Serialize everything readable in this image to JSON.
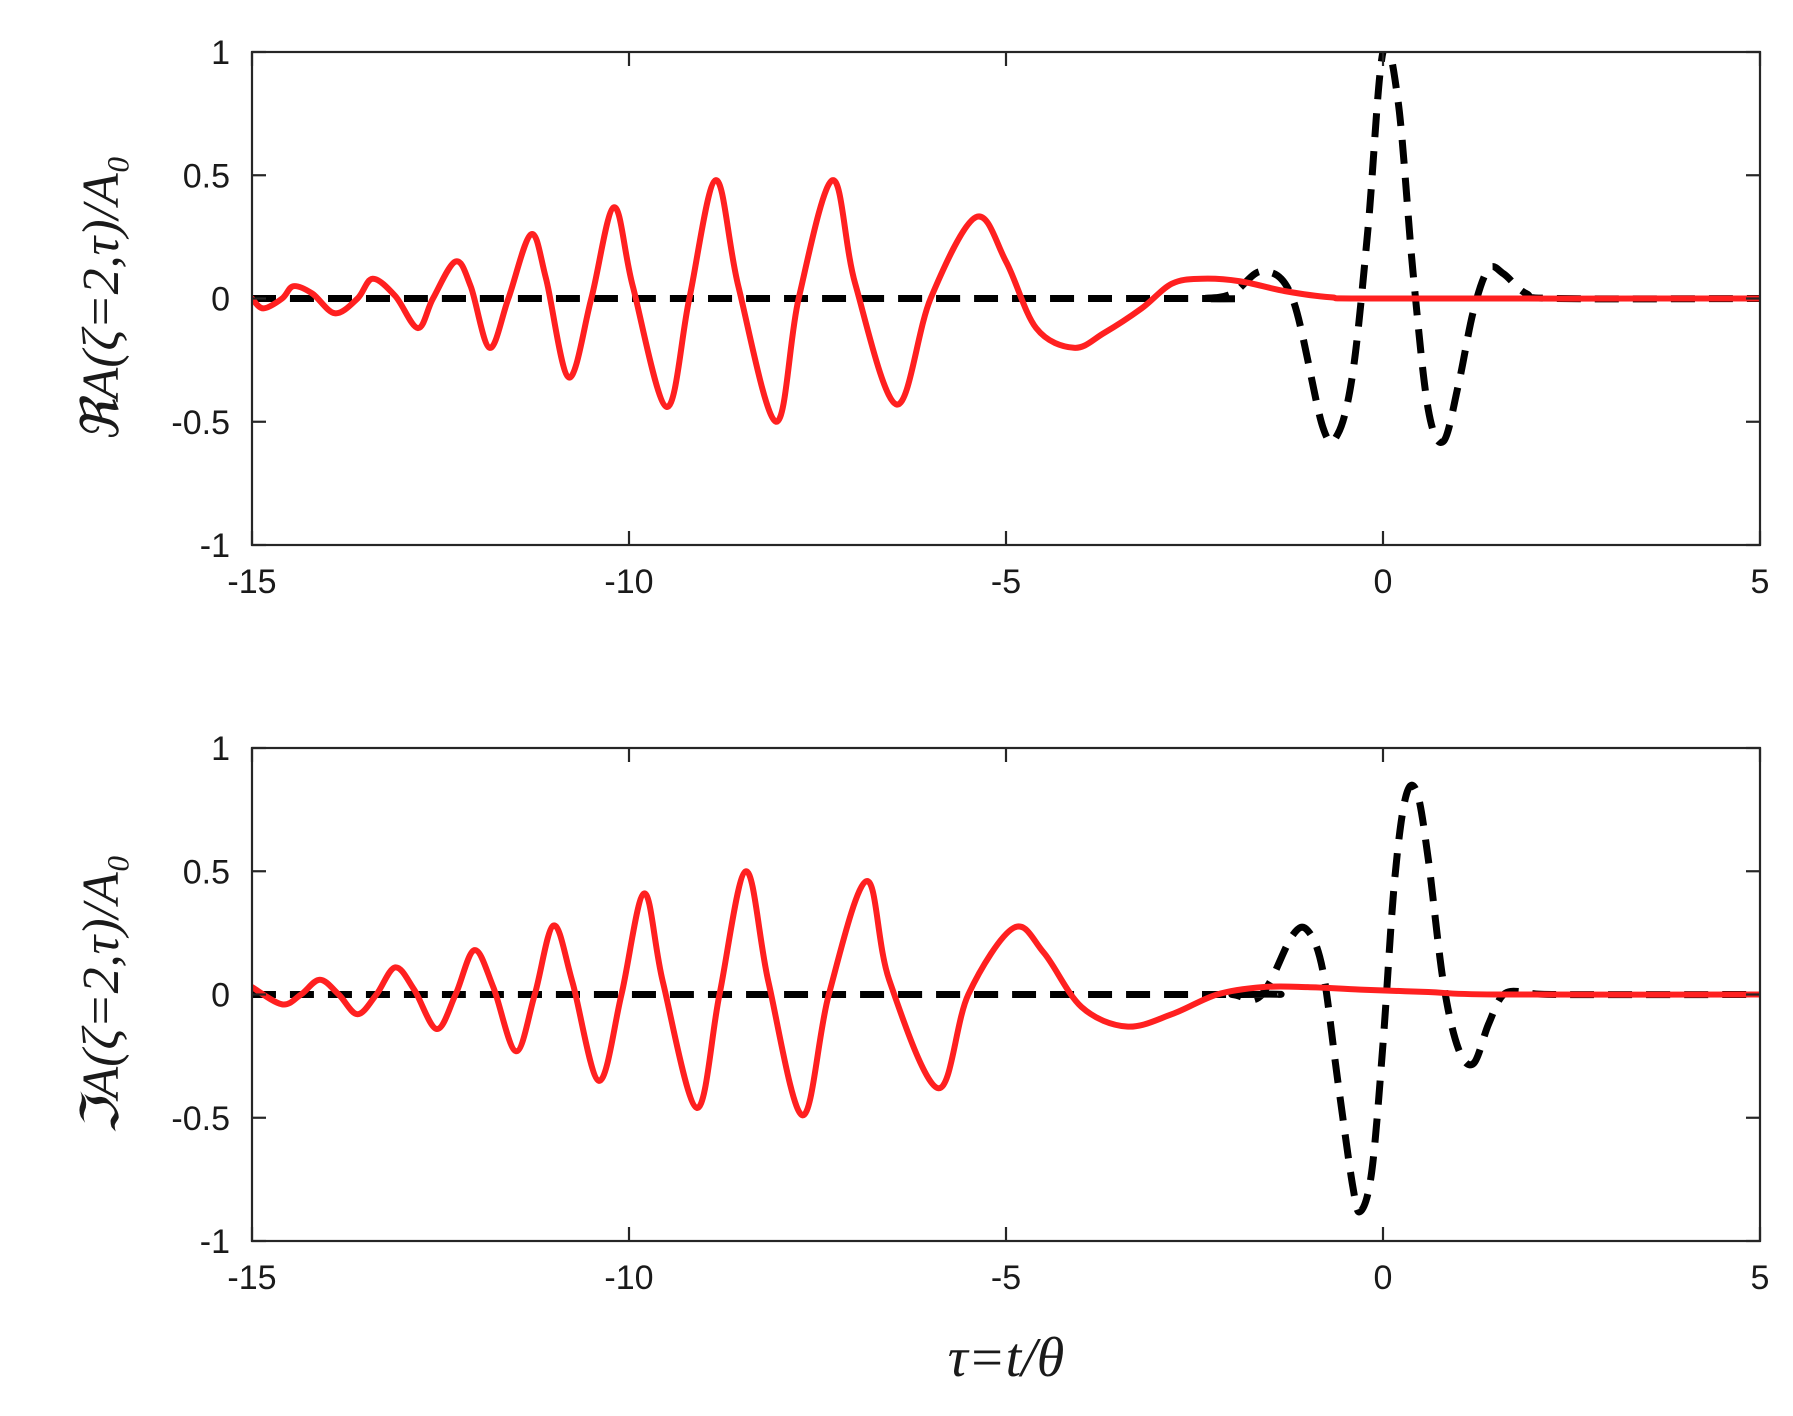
{
  "chart_data": [
    {
      "type": "line",
      "ylabel": "ℜA(ζ=2,τ)/A₀",
      "xlim": [
        -15,
        5
      ],
      "ylim": [
        -1,
        1
      ],
      "xticks": [
        -15,
        -10,
        -5,
        0,
        5
      ],
      "yticks": [
        -1,
        -0.5,
        0,
        0.5,
        1
      ],
      "xtick_labels": [
        "-15",
        "-10",
        "-5",
        "0",
        "5"
      ],
      "ytick_labels": [
        "-1",
        "-0.5",
        "0",
        "0.5",
        "1"
      ],
      "grid": false,
      "series": [
        {
          "style": "dashed",
          "color": "#000000",
          "points": [
            [
              -15,
              0
            ],
            [
              -3,
              0
            ],
            [
              -2.4,
              0
            ],
            [
              -2,
              0.02
            ],
            [
              -1.6,
              0.11
            ],
            [
              -1.2,
              0
            ],
            [
              -0.8,
              -0.52
            ],
            [
              -0.6,
              -0.55
            ],
            [
              -0.4,
              -0.3
            ],
            [
              -0.2,
              0.28
            ],
            [
              0,
              1.0
            ],
            [
              0.2,
              0.8
            ],
            [
              0.4,
              0.1
            ],
            [
              0.6,
              -0.45
            ],
            [
              0.8,
              -0.58
            ],
            [
              1.0,
              -0.35
            ],
            [
              1.2,
              -0.05
            ],
            [
              1.4,
              0.12
            ],
            [
              1.6,
              0.1
            ],
            [
              1.9,
              0.02
            ],
            [
              2.3,
              0
            ],
            [
              5,
              0
            ]
          ]
        },
        {
          "style": "solid",
          "color": "#ff2020",
          "points": [
            [
              -15,
              0
            ],
            [
              -14.85,
              -0.04
            ],
            [
              -14.6,
              0.0
            ],
            [
              -14.45,
              0.05
            ],
            [
              -14.2,
              0.02
            ],
            [
              -13.9,
              -0.06
            ],
            [
              -13.6,
              0
            ],
            [
              -13.4,
              0.08
            ],
            [
              -13.1,
              0.01
            ],
            [
              -12.8,
              -0.12
            ],
            [
              -12.6,
              0
            ],
            [
              -12.3,
              0.15
            ],
            [
              -12.1,
              0.05
            ],
            [
              -11.85,
              -0.2
            ],
            [
              -11.6,
              0
            ],
            [
              -11.3,
              0.26
            ],
            [
              -11.1,
              0.08
            ],
            [
              -10.8,
              -0.32
            ],
            [
              -10.5,
              0
            ],
            [
              -10.2,
              0.37
            ],
            [
              -9.95,
              0.05
            ],
            [
              -9.5,
              -0.44
            ],
            [
              -9.2,
              0
            ],
            [
              -8.85,
              0.48
            ],
            [
              -8.55,
              0.05
            ],
            [
              -8.05,
              -0.5
            ],
            [
              -7.75,
              0
            ],
            [
              -7.3,
              0.48
            ],
            [
              -7.0,
              0.06
            ],
            [
              -6.45,
              -0.43
            ],
            [
              -6.0,
              0
            ],
            [
              -5.4,
              0.33
            ],
            [
              -5.0,
              0.15
            ],
            [
              -4.6,
              -0.12
            ],
            [
              -4.1,
              -0.2
            ],
            [
              -3.7,
              -0.14
            ],
            [
              -3.2,
              -0.04
            ],
            [
              -2.8,
              0.06
            ],
            [
              -2.4,
              0.08
            ],
            [
              -1.9,
              0.07
            ],
            [
              -1.3,
              0.03
            ],
            [
              -0.7,
              0.005
            ],
            [
              0,
              0
            ],
            [
              5,
              0
            ]
          ]
        }
      ]
    },
    {
      "type": "line",
      "ylabel": "ℑA(ζ=2,τ)/A₀",
      "xlabel": "τ=t/θ",
      "xlim": [
        -15,
        5
      ],
      "ylim": [
        -1,
        1
      ],
      "xticks": [
        -15,
        -10,
        -5,
        0,
        5
      ],
      "yticks": [
        -1,
        -0.5,
        0,
        0.5,
        1
      ],
      "xtick_labels": [
        "-15",
        "-10",
        "-5",
        "0",
        "5"
      ],
      "ytick_labels": [
        "-1",
        "-0.5",
        "0",
        "0.5",
        "1"
      ],
      "grid": false,
      "series": [
        {
          "style": "dashed",
          "color": "#000000",
          "points": [
            [
              -15,
              0
            ],
            [
              -2.4,
              0
            ],
            [
              -2.0,
              0.0
            ],
            [
              -1.7,
              -0.02
            ],
            [
              -1.5,
              0.05
            ],
            [
              -1.2,
              0.24
            ],
            [
              -1.0,
              0.26
            ],
            [
              -0.8,
              0.1
            ],
            [
              -0.6,
              -0.35
            ],
            [
              -0.4,
              -0.78
            ],
            [
              -0.3,
              -0.88
            ],
            [
              -0.15,
              -0.72
            ],
            [
              0.0,
              -0.2
            ],
            [
              0.15,
              0.45
            ],
            [
              0.3,
              0.8
            ],
            [
              0.45,
              0.82
            ],
            [
              0.6,
              0.55
            ],
            [
              0.8,
              0.05
            ],
            [
              1.0,
              -0.22
            ],
            [
              1.2,
              -0.28
            ],
            [
              1.4,
              -0.12
            ],
            [
              1.6,
              0.0
            ],
            [
              1.9,
              0.01
            ],
            [
              2.3,
              0.0
            ],
            [
              5,
              0
            ]
          ]
        },
        {
          "style": "solid",
          "color": "#ff2020",
          "points": [
            [
              -15,
              0.03
            ],
            [
              -14.6,
              -0.04
            ],
            [
              -14.35,
              0.0
            ],
            [
              -14.1,
              0.06
            ],
            [
              -13.85,
              0.0
            ],
            [
              -13.6,
              -0.08
            ],
            [
              -13.35,
              0.0
            ],
            [
              -13.1,
              0.11
            ],
            [
              -12.85,
              0.02
            ],
            [
              -12.55,
              -0.14
            ],
            [
              -12.3,
              0.0
            ],
            [
              -12.05,
              0.18
            ],
            [
              -11.8,
              0.03
            ],
            [
              -11.5,
              -0.23
            ],
            [
              -11.25,
              0.0
            ],
            [
              -11.0,
              0.28
            ],
            [
              -10.75,
              0.05
            ],
            [
              -10.4,
              -0.35
            ],
            [
              -10.1,
              0.0
            ],
            [
              -9.8,
              0.41
            ],
            [
              -9.55,
              0.05
            ],
            [
              -9.1,
              -0.46
            ],
            [
              -8.8,
              0.0
            ],
            [
              -8.45,
              0.5
            ],
            [
              -8.15,
              0.05
            ],
            [
              -7.7,
              -0.49
            ],
            [
              -7.35,
              0.0
            ],
            [
              -6.85,
              0.46
            ],
            [
              -6.55,
              0.06
            ],
            [
              -5.9,
              -0.38
            ],
            [
              -5.5,
              0.0
            ],
            [
              -4.9,
              0.27
            ],
            [
              -4.5,
              0.17
            ],
            [
              -4.0,
              -0.05
            ],
            [
              -3.4,
              -0.13
            ],
            [
              -2.8,
              -0.08
            ],
            [
              -2.2,
              0.0
            ],
            [
              -1.6,
              0.03
            ],
            [
              -1.0,
              0.03
            ],
            [
              -0.3,
              0.02
            ],
            [
              0.6,
              0.01
            ],
            [
              1.5,
              0.0
            ],
            [
              5,
              0
            ]
          ]
        }
      ]
    }
  ]
}
